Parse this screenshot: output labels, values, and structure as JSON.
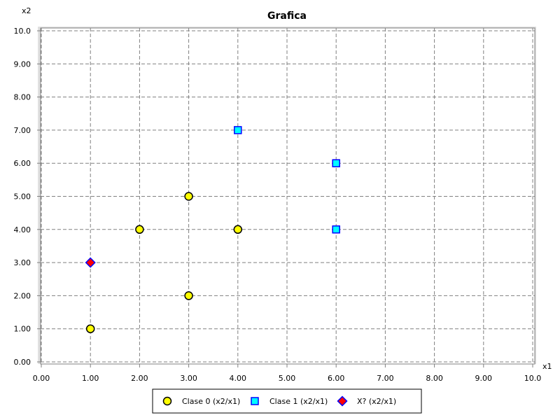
{
  "chart_data": {
    "type": "scatter",
    "title": "Grafica",
    "xlabel": "x1",
    "ylabel": "x2",
    "xlim": [
      0,
      10
    ],
    "ylim": [
      0,
      10
    ],
    "grid": true,
    "legend_placement": "bottom-center",
    "x_ticks": [
      "0.00",
      "1.00",
      "2.00",
      "3.00",
      "4.00",
      "5.00",
      "6.00",
      "7.00",
      "8.00",
      "9.00",
      "10.0"
    ],
    "y_ticks": [
      "0.00",
      "1.00",
      "2.00",
      "3.00",
      "4.00",
      "5.00",
      "6.00",
      "7.00",
      "8.00",
      "9.00",
      "10.0"
    ],
    "series": [
      {
        "name": "Clase 0 (x2/x1)",
        "marker": "circle",
        "color": "#ffff00",
        "points": [
          [
            1,
            1
          ],
          [
            2,
            4
          ],
          [
            3,
            2
          ],
          [
            3,
            5
          ],
          [
            4,
            4
          ]
        ]
      },
      {
        "name": "Clase 1 (x2/x1)",
        "marker": "square",
        "color": "#00ffff",
        "points": [
          [
            4,
            7
          ],
          [
            6,
            6
          ],
          [
            6,
            4
          ]
        ]
      },
      {
        "name": "X? (x2/x1)",
        "marker": "diamond",
        "color": "#ff0000",
        "edge_color": "#0000ff",
        "points": [
          [
            1,
            3
          ]
        ]
      }
    ]
  }
}
